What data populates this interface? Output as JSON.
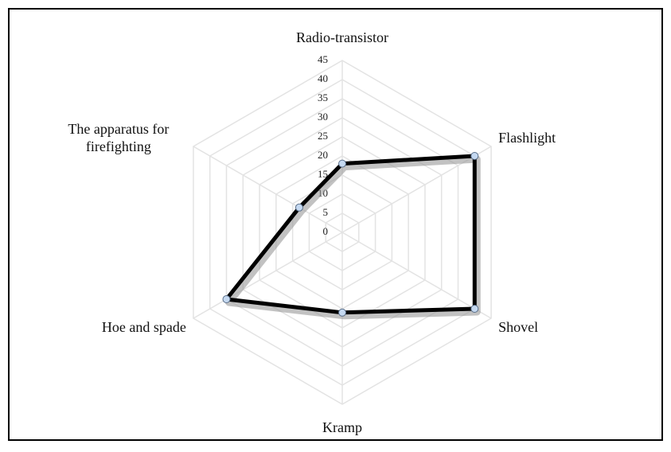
{
  "chart_data": {
    "type": "radar",
    "categories": [
      "Radio-transistor",
      "Flashlight",
      "Shovel",
      "Kramp",
      "Hoe and spade",
      "The apparatus for firefighting"
    ],
    "values": [
      18,
      40,
      40,
      21,
      35,
      13
    ],
    "color": "#000000",
    "marker_color": "#c5d9f1",
    "ylim": [
      0,
      45
    ],
    "yticks": [
      0,
      5,
      10,
      15,
      20,
      25,
      30,
      35,
      40,
      45
    ],
    "grid": true
  }
}
